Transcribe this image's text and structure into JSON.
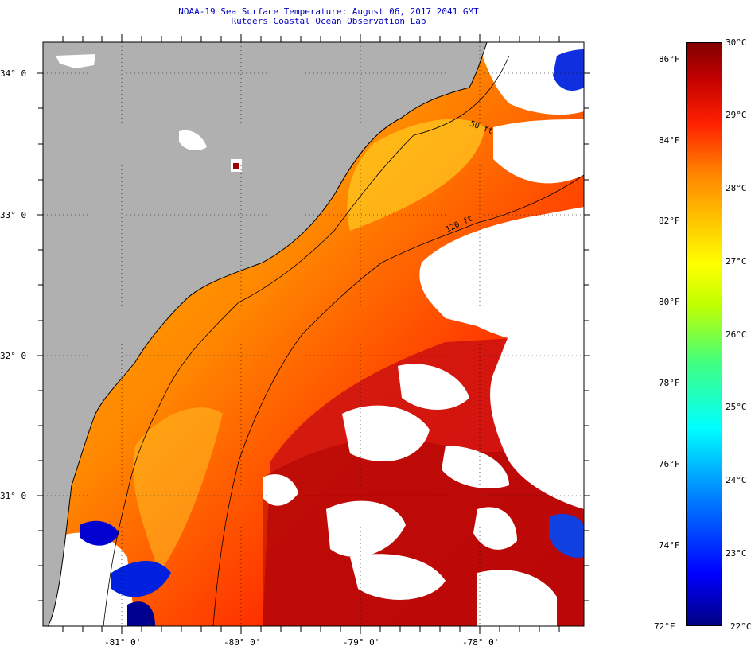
{
  "header": {
    "line1": "NOAA-19 Sea Surface Temperature:  August 06, 2017 2041 GMT",
    "line2": "Rutgers Coastal Ocean Observation Lab"
  },
  "map": {
    "latitude_labels": [
      "34° 0'",
      "33° 0'",
      "32° 0'",
      "31° 0'"
    ],
    "longitude_labels": [
      "-81° 0'",
      "-80° 0'",
      "-79° 0'",
      "-78° 0'"
    ],
    "contour_labels": [
      "50 ft",
      "120 ft"
    ],
    "colors": {
      "land": "#b0b0b0",
      "cloud": "#ffffff",
      "coastline": "#000000",
      "grid": "#000000"
    }
  },
  "legend": {
    "fahrenheit_labels": [
      "86°F",
      "84°F",
      "82°F",
      "80°F",
      "78°F",
      "76°F",
      "74°F",
      "72°F"
    ],
    "celsius_labels": [
      "30°C",
      "29°C",
      "28°C",
      "27°C",
      "26°C",
      "25°C",
      "24°C",
      "23°C",
      "22°C"
    ],
    "range_celsius": [
      22,
      30
    ],
    "range_fahrenheit": [
      72,
      86
    ],
    "gradient": [
      "#000080",
      "#0000ff",
      "#0080ff",
      "#00ffff",
      "#40ff80",
      "#c0ff00",
      "#ffff00",
      "#ffc000",
      "#ff8000",
      "#ff2000",
      "#c00000",
      "#800000"
    ]
  }
}
